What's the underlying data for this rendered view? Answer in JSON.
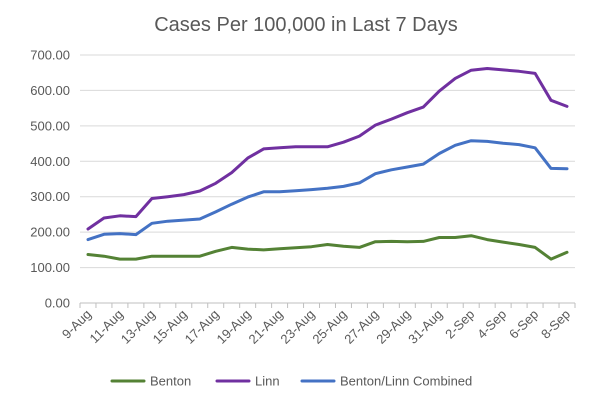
{
  "chart_data": {
    "type": "line",
    "title": "Cases Per 100,000 in Last 7 Days",
    "xlabel": "",
    "ylabel": "",
    "ylim": [
      0,
      700
    ],
    "yticks": [
      "0.00",
      "100.00",
      "200.00",
      "300.00",
      "400.00",
      "500.00",
      "600.00",
      "700.00"
    ],
    "x": [
      "9-Aug",
      "10-Aug",
      "11-Aug",
      "12-Aug",
      "13-Aug",
      "14-Aug",
      "15-Aug",
      "16-Aug",
      "17-Aug",
      "18-Aug",
      "19-Aug",
      "20-Aug",
      "21-Aug",
      "22-Aug",
      "23-Aug",
      "24-Aug",
      "25-Aug",
      "26-Aug",
      "27-Aug",
      "28-Aug",
      "29-Aug",
      "30-Aug",
      "31-Aug",
      "1-Sep",
      "2-Sep",
      "3-Sep",
      "4-Sep",
      "5-Sep",
      "6-Sep",
      "7-Sep",
      "8-Sep"
    ],
    "x_tick_labels": [
      "9-Aug",
      "11-Aug",
      "13-Aug",
      "15-Aug",
      "17-Aug",
      "19-Aug",
      "21-Aug",
      "23-Aug",
      "25-Aug",
      "27-Aug",
      "29-Aug",
      "31-Aug",
      "2-Sep",
      "4-Sep",
      "6-Sep",
      "8-Sep"
    ],
    "grid": true,
    "legend_position": "bottom",
    "series": [
      {
        "name": "Benton",
        "color": "#548235",
        "values": [
          137,
          132,
          124,
          124,
          132,
          132,
          132,
          132,
          146,
          157,
          152,
          150,
          153,
          156,
          159,
          165,
          160,
          157,
          173,
          174,
          173,
          174,
          185,
          185,
          190,
          179,
          172,
          165,
          157,
          124,
          143
        ]
      },
      {
        "name": "Linn",
        "color": "#7030a0",
        "values": [
          209,
          240,
          246,
          244,
          295,
          300,
          306,
          316,
          338,
          368,
          409,
          435,
          438,
          441,
          441,
          441,
          454,
          471,
          502,
          519,
          537,
          553,
          598,
          634,
          657,
          662,
          658,
          654,
          648,
          572,
          555
        ]
      },
      {
        "name": "Benton/Linn Combined",
        "color": "#4472c4",
        "values": [
          179,
          194,
          196,
          193,
          225,
          231,
          234,
          237,
          257,
          279,
          299,
          314,
          314,
          317,
          320,
          324,
          329,
          339,
          365,
          376,
          384,
          392,
          422,
          445,
          458,
          456,
          451,
          447,
          438,
          380,
          379
        ]
      }
    ]
  }
}
